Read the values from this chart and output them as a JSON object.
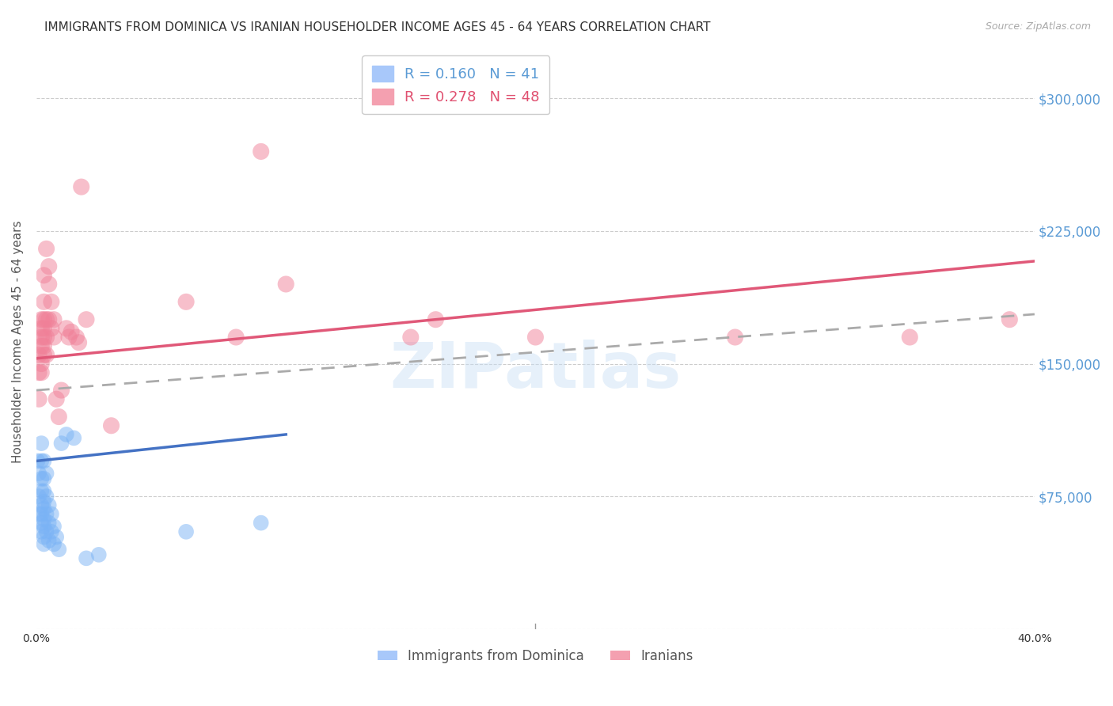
{
  "title": "IMMIGRANTS FROM DOMINICA VS IRANIAN HOUSEHOLDER INCOME AGES 45 - 64 YEARS CORRELATION CHART",
  "source": "Source: ZipAtlas.com",
  "ylabel": "Householder Income Ages 45 - 64 years",
  "xlim": [
    0.0,
    0.4
  ],
  "ylim": [
    0,
    325000
  ],
  "yticks": [
    0,
    75000,
    150000,
    225000,
    300000
  ],
  "ytick_labels": [
    "",
    "$75,000",
    "$150,000",
    "$225,000",
    "$300,000"
  ],
  "xticks": [
    0.0,
    0.05,
    0.1,
    0.15,
    0.2,
    0.25,
    0.3,
    0.35,
    0.4
  ],
  "xtick_labels": [
    "0.0%",
    "",
    "",
    "",
    "",
    "",
    "",
    "",
    "40.0%"
  ],
  "dominica_color": "#7ab3f5",
  "iranian_color": "#f08098",
  "dominica_scatter": [
    [
      0.0005,
      95000
    ],
    [
      0.001,
      88000
    ],
    [
      0.001,
      75000
    ],
    [
      0.001,
      65000
    ],
    [
      0.002,
      105000
    ],
    [
      0.002,
      95000
    ],
    [
      0.002,
      85000
    ],
    [
      0.002,
      78000
    ],
    [
      0.002,
      70000
    ],
    [
      0.002,
      65000
    ],
    [
      0.002,
      60000
    ],
    [
      0.002,
      55000
    ],
    [
      0.003,
      95000
    ],
    [
      0.003,
      85000
    ],
    [
      0.003,
      78000
    ],
    [
      0.003,
      72000
    ],
    [
      0.003,
      68000
    ],
    [
      0.003,
      62000
    ],
    [
      0.003,
      58000
    ],
    [
      0.003,
      52000
    ],
    [
      0.003,
      48000
    ],
    [
      0.004,
      88000
    ],
    [
      0.004,
      75000
    ],
    [
      0.004,
      65000
    ],
    [
      0.004,
      55000
    ],
    [
      0.005,
      70000
    ],
    [
      0.005,
      60000
    ],
    [
      0.005,
      50000
    ],
    [
      0.006,
      65000
    ],
    [
      0.006,
      55000
    ],
    [
      0.007,
      58000
    ],
    [
      0.007,
      48000
    ],
    [
      0.008,
      52000
    ],
    [
      0.009,
      45000
    ],
    [
      0.01,
      105000
    ],
    [
      0.012,
      110000
    ],
    [
      0.015,
      108000
    ],
    [
      0.02,
      40000
    ],
    [
      0.025,
      42000
    ],
    [
      0.06,
      55000
    ],
    [
      0.09,
      60000
    ]
  ],
  "iranian_scatter": [
    [
      0.001,
      155000
    ],
    [
      0.001,
      145000
    ],
    [
      0.001,
      130000
    ],
    [
      0.002,
      175000
    ],
    [
      0.002,
      170000
    ],
    [
      0.002,
      165000
    ],
    [
      0.002,
      160000
    ],
    [
      0.002,
      150000
    ],
    [
      0.002,
      145000
    ],
    [
      0.003,
      200000
    ],
    [
      0.003,
      185000
    ],
    [
      0.003,
      175000
    ],
    [
      0.003,
      170000
    ],
    [
      0.003,
      165000
    ],
    [
      0.003,
      160000
    ],
    [
      0.003,
      155000
    ],
    [
      0.004,
      215000
    ],
    [
      0.004,
      175000
    ],
    [
      0.004,
      165000
    ],
    [
      0.004,
      155000
    ],
    [
      0.005,
      205000
    ],
    [
      0.005,
      195000
    ],
    [
      0.005,
      175000
    ],
    [
      0.006,
      185000
    ],
    [
      0.006,
      170000
    ],
    [
      0.007,
      175000
    ],
    [
      0.007,
      165000
    ],
    [
      0.008,
      130000
    ],
    [
      0.009,
      120000
    ],
    [
      0.01,
      135000
    ],
    [
      0.012,
      170000
    ],
    [
      0.013,
      165000
    ],
    [
      0.014,
      168000
    ],
    [
      0.016,
      165000
    ],
    [
      0.017,
      162000
    ],
    [
      0.018,
      250000
    ],
    [
      0.02,
      175000
    ],
    [
      0.03,
      115000
    ],
    [
      0.06,
      185000
    ],
    [
      0.08,
      165000
    ],
    [
      0.09,
      270000
    ],
    [
      0.1,
      195000
    ],
    [
      0.15,
      165000
    ],
    [
      0.16,
      175000
    ],
    [
      0.2,
      165000
    ],
    [
      0.28,
      165000
    ],
    [
      0.35,
      165000
    ],
    [
      0.39,
      175000
    ]
  ],
  "dominica_line": {
    "x0": 0.0,
    "y0": 95000,
    "x1": 0.1,
    "y1": 110000
  },
  "iranian_line": {
    "x0": 0.0,
    "y0": 153000,
    "x1": 0.4,
    "y1": 208000
  },
  "dashed_line": {
    "x0": 0.0,
    "y0": 135000,
    "x1": 0.4,
    "y1": 178000
  },
  "watermark": "ZIPatlas",
  "background_color": "#ffffff",
  "grid_color": "#cccccc",
  "title_fontsize": 11,
  "label_fontsize": 11,
  "tick_fontsize": 10,
  "right_tick_color": "#5b9bd5",
  "legend_blue_color": "#5b9bd5",
  "legend_pink_color": "#e05070"
}
